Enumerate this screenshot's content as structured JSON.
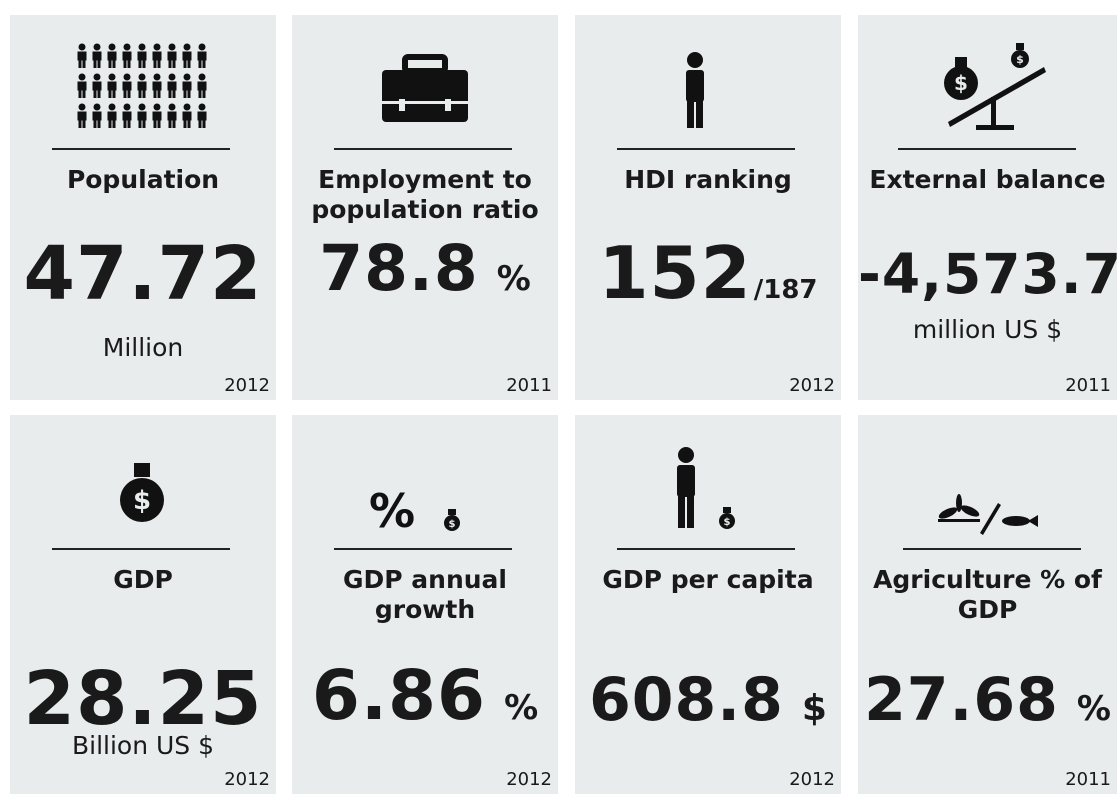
{
  "cards": [
    {
      "label": "Population",
      "value": "47.72",
      "unit": "Million",
      "year": "2012"
    },
    {
      "label": "Employment to population ratio",
      "value": "78.8",
      "unit": "%",
      "year": "2011"
    },
    {
      "label": "HDI ranking",
      "value": "152",
      "unit": "/187",
      "year": "2012"
    },
    {
      "label": "External  balance",
      "value": "-4,573.7",
      "unit": "million US $",
      "year": "2011"
    },
    {
      "label": "GDP",
      "value": "28.25",
      "unit": "Billion US $",
      "year": "2012"
    },
    {
      "label": "GDP annual growth",
      "value": "6.86",
      "unit": "%",
      "year": "2012"
    },
    {
      "label": "GDP per capita",
      "value": "608.8",
      "unit": "$",
      "year": "2012"
    },
    {
      "label": "Agriculture % of GDP",
      "value": "27.68",
      "unit": "%",
      "year": "2011"
    }
  ]
}
